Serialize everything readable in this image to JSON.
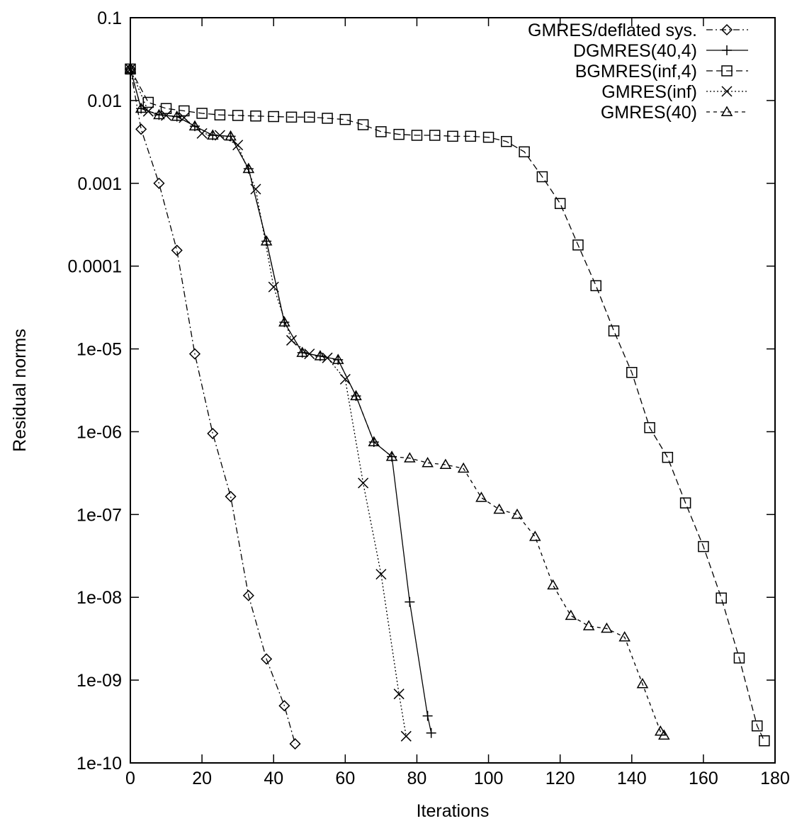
{
  "chart_data": {
    "type": "line",
    "title": "",
    "xlabel": "Iterations",
    "ylabel": "Residual norms",
    "xlim": [
      0,
      180
    ],
    "ylim": [
      1e-10,
      0.1
    ],
    "yscale": "log",
    "grid": false,
    "legend_position": "top-right",
    "x_ticks": [
      0,
      20,
      40,
      60,
      80,
      100,
      120,
      140,
      160,
      180
    ],
    "x_tick_labels": [
      "0",
      "20",
      "40",
      "60",
      "80",
      "100",
      "120",
      "140",
      "160",
      "180"
    ],
    "y_ticks": [
      1e-10,
      1e-09,
      1e-08,
      1e-07,
      1e-06,
      1e-05,
      0.0001,
      0.001,
      0.01,
      0.1
    ],
    "y_tick_labels": [
      "1e-10",
      "1e-09",
      "1e-08",
      "1e-07",
      "1e-06",
      "1e-05",
      "0.0001",
      "0.001",
      "0.01",
      "0.1"
    ],
    "series": [
      {
        "name": "GMRES/deflated sys.",
        "marker": "diamond",
        "dash": "dashdot",
        "points": [
          [
            0,
            0.024
          ],
          [
            3,
            0.0045
          ],
          [
            8,
            0.001
          ],
          [
            13,
            0.000155
          ],
          [
            18,
            8.7e-06
          ],
          [
            23,
            9.5e-07
          ],
          [
            28,
            1.65e-07
          ],
          [
            33,
            1.05e-08
          ],
          [
            38,
            1.8e-09
          ],
          [
            43,
            4.9e-10
          ],
          [
            46,
            1.7e-10
          ]
        ]
      },
      {
        "name": "DGMRES(40,4)",
        "marker": "plus",
        "dash": "solid",
        "points": [
          [
            0,
            0.024
          ],
          [
            3,
            0.008
          ],
          [
            8,
            0.0067
          ],
          [
            13,
            0.0064
          ],
          [
            18,
            0.0049
          ],
          [
            23,
            0.0038
          ],
          [
            28,
            0.0037
          ],
          [
            33,
            0.0015
          ],
          [
            38,
            0.0002
          ],
          [
            43,
            2.1e-05
          ],
          [
            48,
            9e-06
          ],
          [
            53,
            8.2e-06
          ],
          [
            58,
            7.4e-06
          ],
          [
            63,
            2.7e-06
          ],
          [
            68,
            7.5e-07
          ],
          [
            73,
            5e-07
          ],
          [
            78,
            8.8e-09
          ],
          [
            83,
            3.7e-10
          ],
          [
            84,
            2.3e-10
          ]
        ]
      },
      {
        "name": "BGMRES(inf,4)",
        "marker": "square",
        "dash": "dashed",
        "points": [
          [
            0,
            0.024
          ],
          [
            5,
            0.0095
          ],
          [
            10,
            0.008
          ],
          [
            15,
            0.0075
          ],
          [
            20,
            0.007
          ],
          [
            25,
            0.0067
          ],
          [
            30,
            0.0066
          ],
          [
            35,
            0.0065
          ],
          [
            40,
            0.0064
          ],
          [
            45,
            0.0063
          ],
          [
            50,
            0.0063
          ],
          [
            55,
            0.0061
          ],
          [
            60,
            0.0059
          ],
          [
            65,
            0.0051
          ],
          [
            70,
            0.0042
          ],
          [
            75,
            0.0039
          ],
          [
            80,
            0.0038
          ],
          [
            85,
            0.0038
          ],
          [
            90,
            0.0037
          ],
          [
            95,
            0.0037
          ],
          [
            100,
            0.0036
          ],
          [
            105,
            0.0032
          ],
          [
            110,
            0.0024
          ],
          [
            115,
            0.0012
          ],
          [
            120,
            0.00057
          ],
          [
            125,
            0.00018
          ],
          [
            130,
            5.8e-05
          ],
          [
            135,
            1.65e-05
          ],
          [
            140,
            5.2e-06
          ],
          [
            145,
            1.12e-06
          ],
          [
            150,
            4.9e-07
          ],
          [
            155,
            1.38e-07
          ],
          [
            160,
            4.1e-08
          ],
          [
            165,
            9.8e-09
          ],
          [
            170,
            1.85e-09
          ],
          [
            175,
            2.8e-10
          ],
          [
            177,
            1.85e-10
          ]
        ]
      },
      {
        "name": "GMRES(inf)",
        "marker": "cross",
        "dash": "dotted",
        "points": [
          [
            0,
            0.024
          ],
          [
            5,
            0.0074
          ],
          [
            10,
            0.0066
          ],
          [
            15,
            0.0062
          ],
          [
            20,
            0.004
          ],
          [
            25,
            0.0038
          ],
          [
            30,
            0.0029
          ],
          [
            35,
            0.00085
          ],
          [
            40,
            5.6e-05
          ],
          [
            45,
            1.27e-05
          ],
          [
            50,
            8.7e-06
          ],
          [
            55,
            7.8e-06
          ],
          [
            60,
            4.3e-06
          ],
          [
            65,
            2.4e-07
          ],
          [
            70,
            1.9e-08
          ],
          [
            75,
            6.8e-10
          ],
          [
            77,
            2.1e-10
          ]
        ]
      },
      {
        "name": "GMRES(40)",
        "marker": "triangle",
        "dash": "shortdash",
        "points": [
          [
            0,
            0.024
          ],
          [
            3,
            0.008
          ],
          [
            8,
            0.0067
          ],
          [
            13,
            0.0064
          ],
          [
            18,
            0.0049
          ],
          [
            23,
            0.0038
          ],
          [
            28,
            0.0037
          ],
          [
            33,
            0.0015
          ],
          [
            38,
            0.0002
          ],
          [
            43,
            2.1e-05
          ],
          [
            48,
            9e-06
          ],
          [
            53,
            8.2e-06
          ],
          [
            58,
            7.4e-06
          ],
          [
            63,
            2.7e-06
          ],
          [
            68,
            7.5e-07
          ],
          [
            73,
            5e-07
          ],
          [
            78,
            4.8e-07
          ],
          [
            83,
            4.2e-07
          ],
          [
            88,
            4e-07
          ],
          [
            93,
            3.6e-07
          ],
          [
            98,
            1.6e-07
          ],
          [
            103,
            1.15e-07
          ],
          [
            108,
            1e-07
          ],
          [
            113,
            5.4e-08
          ],
          [
            118,
            1.4e-08
          ],
          [
            123,
            6e-09
          ],
          [
            128,
            4.5e-09
          ],
          [
            133,
            4.2e-09
          ],
          [
            138,
            3.3e-09
          ],
          [
            143,
            9e-10
          ],
          [
            148,
            2.4e-10
          ],
          [
            149,
            2.15e-10
          ]
        ]
      }
    ]
  }
}
